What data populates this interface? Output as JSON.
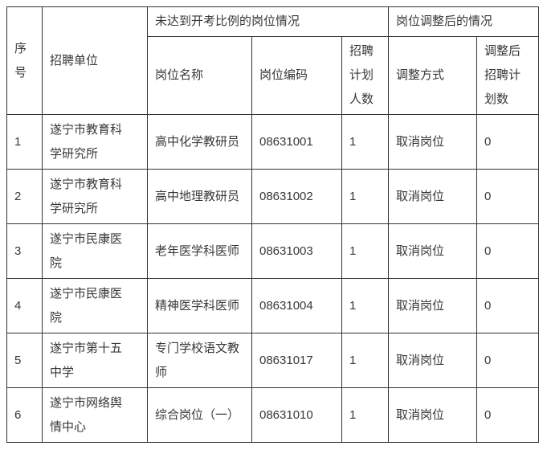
{
  "table": {
    "header": {
      "seq": "序号",
      "unit": "招聘单位",
      "group_unmet": "未达到开考比例的岗位情况",
      "group_adjusted": "岗位调整后的情况",
      "post_name": "岗位名称",
      "post_code": "岗位编码",
      "plan_count": "招聘计划人数",
      "adjust_method": "调整方式",
      "adjusted_plan": "调整后招聘计划数"
    },
    "rows": [
      {
        "seq": "1",
        "unit": "遂宁市教育科学研究所",
        "post_name": "高中化学教研员",
        "post_code": "08631001",
        "plan_count": "1",
        "adjust_method": "取消岗位",
        "adjusted_plan": "0"
      },
      {
        "seq": "2",
        "unit": "遂宁市教育科学研究所",
        "post_name": "高中地理教研员",
        "post_code": "08631002",
        "plan_count": "1",
        "adjust_method": "取消岗位",
        "adjusted_plan": "0"
      },
      {
        "seq": "3",
        "unit": "遂宁市民康医院",
        "post_name": "老年医学科医师",
        "post_code": "08631003",
        "plan_count": "1",
        "adjust_method": "取消岗位",
        "adjusted_plan": "0"
      },
      {
        "seq": "4",
        "unit": "遂宁市民康医院",
        "post_name": "精神医学科医师",
        "post_code": "08631004",
        "plan_count": "1",
        "adjust_method": "取消岗位",
        "adjusted_plan": "0"
      },
      {
        "seq": "5",
        "unit": "遂宁市第十五中学",
        "post_name": "专门学校语文教师",
        "post_code": "08631017",
        "plan_count": "1",
        "adjust_method": "取消岗位",
        "adjusted_plan": "0"
      },
      {
        "seq": "6",
        "unit": "遂宁市网络舆情中心",
        "post_name": "综合岗位（一）",
        "post_code": "08631010",
        "plan_count": "1",
        "adjust_method": "取消岗位",
        "adjusted_plan": "0"
      }
    ],
    "colors": {
      "border": "#333333",
      "text": "#383838",
      "background": "#ffffff"
    }
  }
}
